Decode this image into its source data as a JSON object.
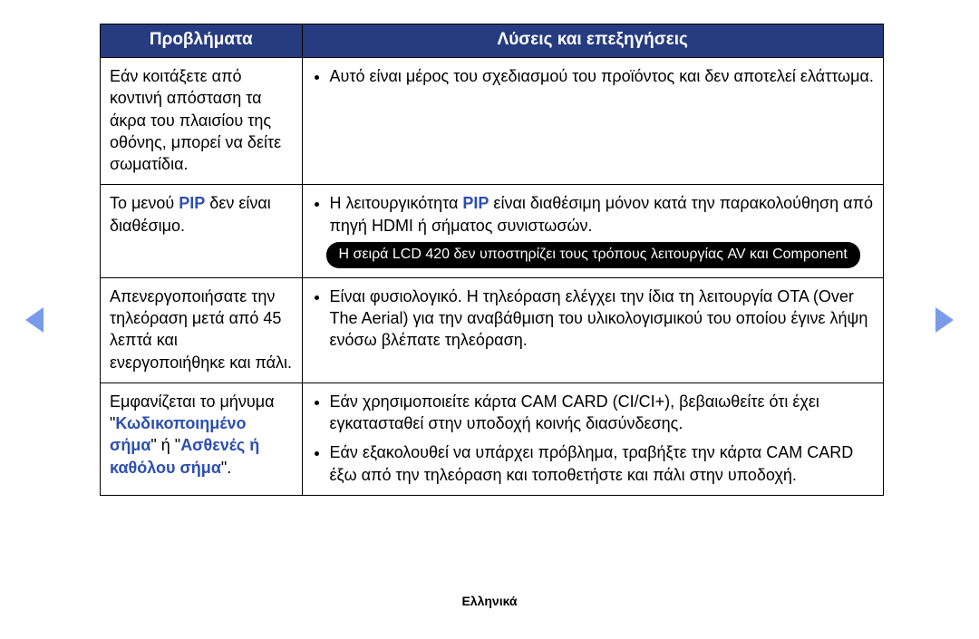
{
  "colors": {
    "header_bg": "#263b80",
    "header_fg": "#ffffff",
    "accent": "#2d4fb0",
    "arrow": "#7a9be9",
    "pill_bg": "#000000",
    "pill_fg": "#ffffff"
  },
  "table": {
    "headers": {
      "problems": "Προβλήματα",
      "solutions": "Λύσεις και επεξηγήσεις"
    },
    "rows": [
      {
        "problem_plain": "Εάν κοιτάξετε από κοντινή απόσταση τα άκρα του πλαισίου της οθόνης, μπορεί να δείτε σωματίδια.",
        "solutions": [
          {
            "text": "Αυτό είναι μέρος του σχεδιασμού του προϊόντος και δεν αποτελεί ελάττωμα."
          }
        ]
      },
      {
        "problem_pre": "Το μενού ",
        "problem_accent": "PIP",
        "problem_post": " δεν είναι διαθέσιμο.",
        "solutions": [
          {
            "pre": "Η λειτουργικότητα ",
            "accent": "PIP",
            "post": " είναι διαθέσιμη μόνον κατά την παρακολούθηση από πηγή HDMI ή σήματος συνιστωσών.",
            "pill": "Η σειρά LCD 420 δεν υποστηρίζει τους τρόπους λειτουργίας AV και Component"
          }
        ]
      },
      {
        "problem_plain": "Απενεργοποιήσατε την τηλεόραση μετά από 45 λεπτά και ενεργοποιήθηκε και πάλι.",
        "solutions": [
          {
            "text": "Είναι φυσιολογικό. Η τηλεόραση ελέγχει την ίδια τη λειτουργία OTA (Over The Aerial) για την αναβάθμιση του υλικολογισμικού του οποίου έγινε λήψη ενόσω βλέπατε τηλεόραση."
          }
        ]
      },
      {
        "problem_pre": "Εμφανίζεται το μήνυμα \"",
        "problem_accent": "Κωδικοποιημένο σήμα",
        "problem_mid": "\" ή \"",
        "problem_accent2": "Ασθενές ή καθόλου σήμα",
        "problem_post": "\".",
        "solutions": [
          {
            "text": "Εάν χρησιμοποιείτε κάρτα CAM CARD (CI/CI+), βεβαιωθείτε ότι έχει εγκατασταθεί στην υποδοχή κοινής διασύνδεσης."
          },
          {
            "text": "Εάν εξακολουθεί να υπάρχει πρόβλημα, τραβήξτε την κάρτα CAM CARD έξω από την τηλεόραση και τοποθετήστε και πάλι στην υποδοχή."
          }
        ]
      }
    ]
  },
  "footer": "Ελληνικά"
}
